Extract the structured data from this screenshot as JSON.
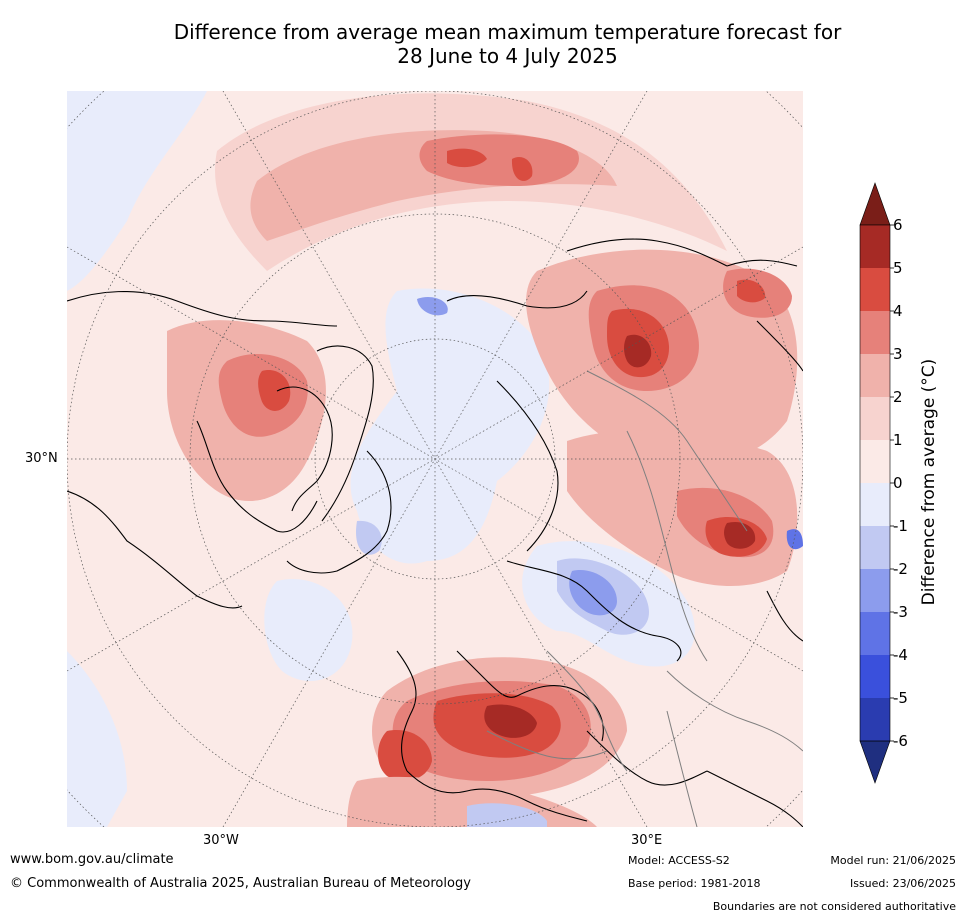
{
  "title": {
    "line1": "Difference from average mean maximum temperature forecast for",
    "line2": "28 June to 4 July 2025"
  },
  "map": {
    "projection": "north-polar-stereographic",
    "lat_labels": [
      "30°N"
    ],
    "lon_labels": [
      "30°W",
      "30°E"
    ],
    "land_color": "#fbeae7",
    "coastline_color": "#000000",
    "border_color": "#7f7f7f",
    "grid_color": "#555555"
  },
  "colorbar": {
    "label": "Difference from average (°C)",
    "ticks": [
      "6",
      "5",
      "4",
      "3",
      "2",
      "1",
      "0",
      "-1",
      "-2",
      "-3",
      "-4",
      "-5",
      "-6"
    ],
    "colors_top_to_bottom": [
      "#a62a25",
      "#d94c40",
      "#e6817a",
      "#f0b2ab",
      "#f7d3cf",
      "#fbeae7",
      "#e8ecfb",
      "#c1c9f2",
      "#8c9ced",
      "#5f73e6",
      "#3a50dc",
      "#2a3cb0"
    ],
    "extend_top_color": "#7a1e18",
    "extend_bottom_color": "#1f2f80"
  },
  "footer": {
    "website": "www.bom.gov.au/climate",
    "copyright": "© Commonwealth of Australia 2025, Australian Bureau of Meteorology",
    "model": "Model: ACCESS-S2",
    "base_period": "Base period: 1981-2018",
    "model_run": "Model run: 21/06/2025",
    "issued": "Issued: 23/06/2025",
    "disclaimer": "Boundaries are not considered authoritative"
  }
}
